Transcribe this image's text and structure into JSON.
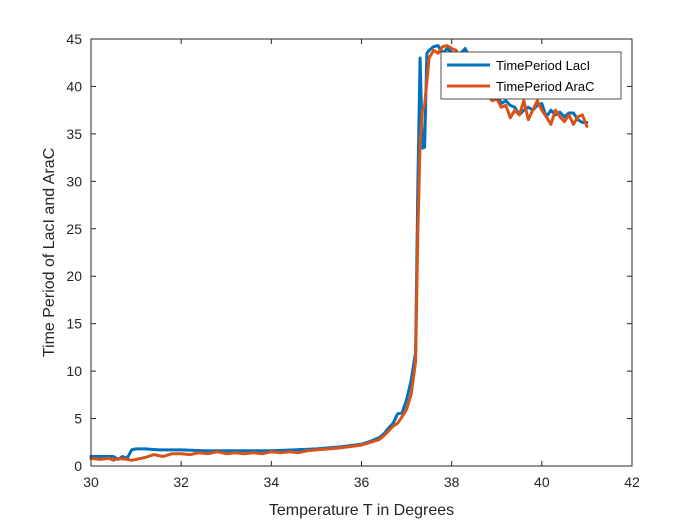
{
  "chart_data": {
    "type": "line",
    "title": "",
    "xlabel": "Temperature T in Degrees",
    "ylabel": "Time Period of LacI and AraC",
    "xlim": [
      30,
      42
    ],
    "ylim": [
      0,
      45
    ],
    "xticks": [
      30,
      32,
      34,
      36,
      38,
      40,
      42
    ],
    "yticks": [
      0,
      5,
      10,
      15,
      20,
      25,
      30,
      35,
      40,
      45
    ],
    "grid": false,
    "legend_position": "top-right",
    "series": [
      {
        "name": "TimePeriod LacI",
        "color": "#0072BD",
        "x": [
          30.0,
          30.3,
          30.5,
          30.6,
          30.7,
          30.8,
          30.9,
          31.0,
          31.2,
          31.5,
          31.8,
          32.0,
          32.5,
          33.0,
          33.5,
          34.0,
          34.5,
          35.0,
          35.5,
          36.0,
          36.2,
          36.4,
          36.5,
          36.6,
          36.7,
          36.8,
          36.9,
          37.0,
          37.1,
          37.2,
          37.25,
          37.3,
          37.35,
          37.4,
          37.45,
          37.5,
          37.6,
          37.7,
          37.8,
          37.9,
          38.0,
          38.1,
          38.2,
          38.3,
          38.4,
          38.5,
          38.6,
          38.7,
          38.8,
          38.9,
          39.0,
          39.1,
          39.2,
          39.3,
          39.4,
          39.5,
          39.6,
          39.7,
          39.8,
          39.9,
          40.0,
          40.1,
          40.2,
          40.3,
          40.4,
          40.5,
          40.6,
          40.7,
          40.8,
          40.9,
          41.0
        ],
        "y": [
          1.0,
          1.0,
          1.0,
          0.7,
          1.0,
          0.8,
          1.7,
          1.8,
          1.8,
          1.7,
          1.7,
          1.7,
          1.6,
          1.6,
          1.6,
          1.6,
          1.7,
          1.8,
          2.0,
          2.3,
          2.6,
          3.0,
          3.4,
          4.0,
          4.5,
          5.5,
          5.6,
          7.0,
          9.0,
          12.0,
          30.0,
          43.0,
          33.5,
          33.6,
          43.5,
          43.8,
          44.2,
          44.3,
          43.5,
          44.0,
          43.6,
          43.2,
          43.5,
          44.0,
          43.0,
          40.5,
          40.2,
          39.5,
          40.0,
          39.0,
          39.2,
          38.2,
          38.5,
          38.0,
          37.8,
          37.0,
          37.5,
          37.8,
          37.5,
          38.0,
          38.2,
          36.8,
          37.5,
          37.0,
          37.3,
          36.8,
          37.2,
          37.2,
          36.5,
          36.2,
          36.2
        ]
      },
      {
        "name": "TimePeriod AraC",
        "color": "#D95319",
        "x": [
          30.0,
          30.2,
          30.4,
          30.5,
          30.6,
          30.8,
          30.9,
          31.0,
          31.2,
          31.4,
          31.6,
          31.8,
          32.0,
          32.2,
          32.4,
          32.6,
          32.8,
          33.0,
          33.2,
          33.4,
          33.6,
          33.8,
          34.0,
          34.2,
          34.4,
          34.6,
          34.8,
          35.0,
          35.5,
          36.0,
          36.2,
          36.4,
          36.5,
          36.6,
          36.7,
          36.8,
          36.9,
          37.0,
          37.1,
          37.2,
          37.25,
          37.3,
          37.35,
          37.4,
          37.5,
          37.6,
          37.7,
          37.8,
          37.9,
          38.0,
          38.1,
          38.2,
          38.3,
          38.4,
          38.5,
          38.6,
          38.7,
          38.8,
          38.9,
          39.0,
          39.1,
          39.2,
          39.3,
          39.4,
          39.5,
          39.6,
          39.7,
          39.8,
          39.9,
          40.0,
          40.1,
          40.2,
          40.3,
          40.4,
          40.5,
          40.6,
          40.7,
          40.8,
          40.9,
          41.0
        ],
        "y": [
          0.8,
          0.7,
          0.8,
          0.6,
          0.8,
          0.7,
          0.6,
          0.7,
          0.9,
          1.2,
          1.0,
          1.3,
          1.3,
          1.2,
          1.4,
          1.3,
          1.5,
          1.3,
          1.4,
          1.3,
          1.4,
          1.3,
          1.5,
          1.4,
          1.5,
          1.4,
          1.6,
          1.7,
          1.9,
          2.2,
          2.5,
          2.8,
          3.2,
          3.7,
          4.2,
          4.5,
          5.2,
          6.0,
          7.5,
          11.0,
          25.0,
          34.0,
          37.5,
          38.0,
          43.0,
          43.8,
          43.5,
          44.2,
          44.3,
          44.0,
          43.8,
          42.0,
          40.0,
          40.3,
          39.5,
          39.8,
          38.8,
          39.0,
          38.5,
          38.7,
          37.8,
          38.0,
          36.7,
          37.5,
          37.0,
          38.5,
          36.5,
          37.5,
          38.5,
          37.5,
          36.8,
          36.0,
          37.5,
          36.8,
          36.3,
          37.0,
          36.0,
          36.8,
          37.0,
          35.8
        ]
      }
    ]
  }
}
